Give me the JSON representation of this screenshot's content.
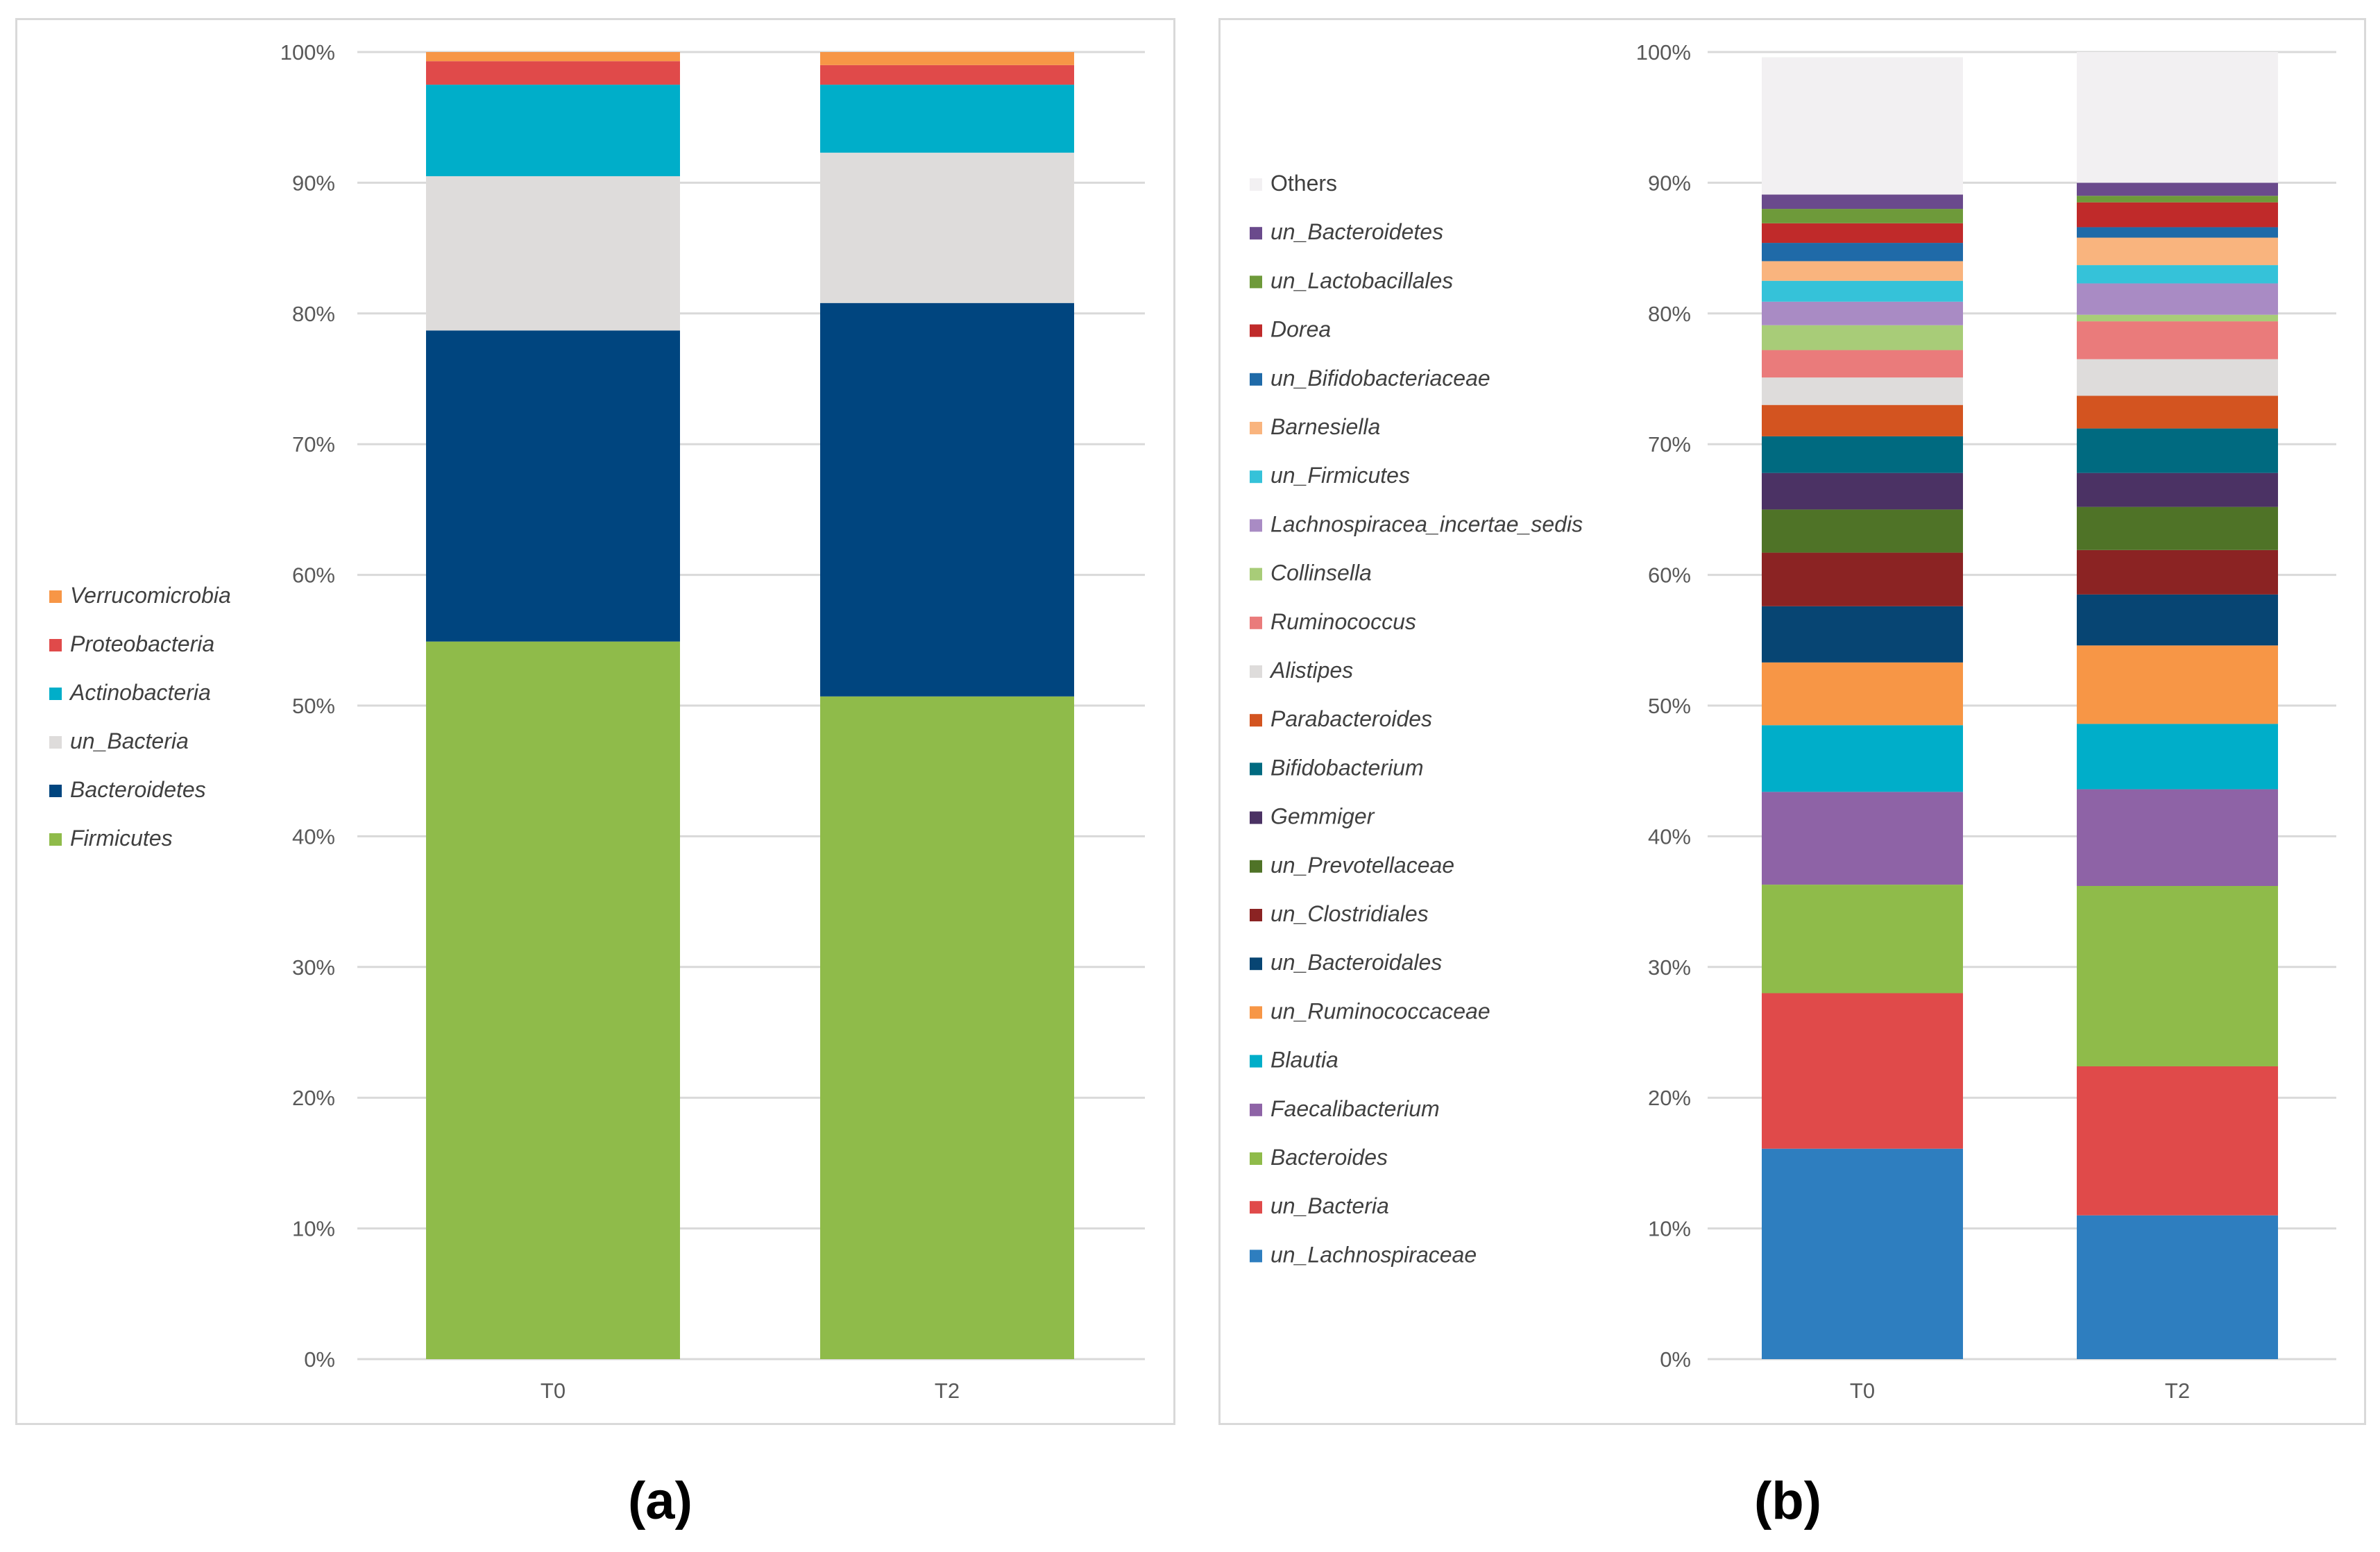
{
  "chart_data": [
    {
      "type": "stacked-bar-100",
      "panel_label": "(a)",
      "categories": [
        "T0",
        "T2"
      ],
      "y_ticks": [
        "0%",
        "10%",
        "20%",
        "30%",
        "40%",
        "50%",
        "60%",
        "70%",
        "80%",
        "90%",
        "100%"
      ],
      "ylim": [
        0,
        100
      ],
      "legend_position": "left",
      "series": [
        {
          "name": "Firmicutes",
          "color": "#8fbb4a",
          "values": [
            54.9,
            50.7
          ]
        },
        {
          "name": "Bacteroidetes",
          "color": "#00457f",
          "values": [
            23.8,
            30.1
          ]
        },
        {
          "name": "un_Bacteria",
          "color": "#dedcdb",
          "values": [
            11.8,
            11.5
          ]
        },
        {
          "name": "Actinobacteria",
          "color": "#00aec9",
          "values": [
            7.0,
            5.2
          ]
        },
        {
          "name": "Proteobacteria",
          "color": "#e04a4a",
          "values": [
            1.8,
            1.5
          ]
        },
        {
          "name": "Verrucomicrobia",
          "color": "#f79646",
          "values": [
            0.7,
            1.0
          ]
        }
      ]
    },
    {
      "type": "stacked-bar-100",
      "panel_label": "(b)",
      "categories": [
        "T0",
        "T2"
      ],
      "y_ticks": [
        "0%",
        "10%",
        "20%",
        "30%",
        "40%",
        "50%",
        "60%",
        "70%",
        "80%",
        "90%",
        "100%"
      ],
      "ylim": [
        0,
        100
      ],
      "legend_position": "left",
      "series": [
        {
          "name": "un_Lachnospiraceae",
          "color": "#2e7ebf",
          "values": [
            16.1,
            11.0
          ]
        },
        {
          "name": "un_Bacteria",
          "color": "#e04a4a",
          "values": [
            11.9,
            11.4
          ]
        },
        {
          "name": "Bacteroides",
          "color": "#8fbb4a",
          "values": [
            8.3,
            13.8
          ]
        },
        {
          "name": "Faecalibacterium",
          "color": "#8e63a6",
          "values": [
            7.1,
            7.4
          ]
        },
        {
          "name": "Blautia",
          "color": "#00aec9",
          "values": [
            5.1,
            5.0
          ]
        },
        {
          "name": "un_Ruminococcaceae",
          "color": "#f79646",
          "values": [
            4.8,
            6.0
          ]
        },
        {
          "name": "un_Bacteroidales",
          "color": "#074573",
          "values": [
            4.3,
            3.9
          ]
        },
        {
          "name": "un_Clostridiales",
          "color": "#8b2323",
          "values": [
            4.1,
            3.4
          ]
        },
        {
          "name": "un_Prevotellaceae",
          "color": "#4f7327",
          "values": [
            3.3,
            3.3
          ]
        },
        {
          "name": "Gemmiger",
          "color": "#4b3264",
          "values": [
            2.8,
            2.6
          ]
        },
        {
          "name": "Bifidobacterium",
          "color": "#006a80",
          "values": [
            2.8,
            3.4
          ]
        },
        {
          "name": "Parabacteroides",
          "color": "#d35420",
          "values": [
            2.4,
            2.5
          ]
        },
        {
          "name": "Alistipes",
          "color": "#dedcdb",
          "values": [
            2.1,
            2.8
          ]
        },
        {
          "name": "Ruminococcus",
          "color": "#ea7b7b",
          "values": [
            2.1,
            2.9
          ]
        },
        {
          "name": "Collinsella",
          "color": "#a8cc78",
          "values": [
            1.9,
            0.5
          ]
        },
        {
          "name": "Lachnospiracea_incertae_sedis",
          "color": "#a98bc4",
          "values": [
            1.8,
            2.4
          ]
        },
        {
          "name": "un_Firmicutes",
          "color": "#35c2d9",
          "values": [
            1.6,
            1.4
          ]
        },
        {
          "name": "Barnesiella",
          "color": "#f9b47e",
          "values": [
            1.5,
            2.1
          ]
        },
        {
          "name": "un_Bifidobacteriaceae",
          "color": "#1f6aa8",
          "values": [
            1.4,
            0.8
          ]
        },
        {
          "name": "Dorea",
          "color": "#c02a2a",
          "values": [
            1.5,
            1.9
          ]
        },
        {
          "name": "un_Lactobacillales",
          "color": "#6e9a3a",
          "values": [
            1.1,
            0.5
          ]
        },
        {
          "name": "un_Bacteroidetes",
          "color": "#6a4a8c",
          "values": [
            1.1,
            1.0
          ]
        },
        {
          "name": "Others",
          "color": "#f2f0f2",
          "values": [
            10.5,
            10.0
          ]
        }
      ]
    }
  ]
}
